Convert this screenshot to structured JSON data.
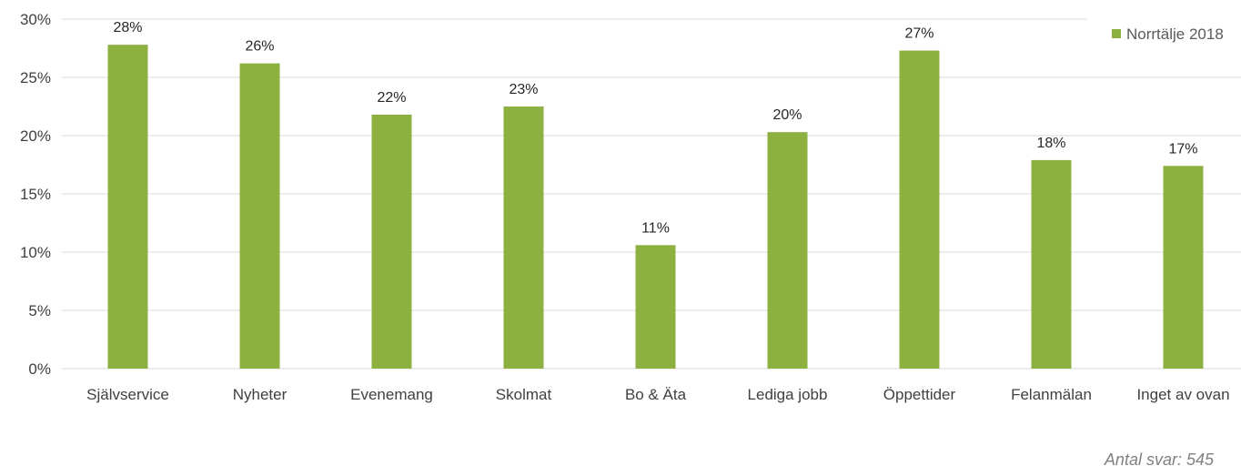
{
  "chart_data": {
    "type": "bar",
    "categories": [
      "Självservice",
      "Nyheter",
      "Evenemang",
      "Skolmat",
      "Bo & Äta",
      "Lediga jobb",
      "Öppettider",
      "Felanmälan",
      "Inget av ovan"
    ],
    "series": [
      {
        "name": "Norrtälje 2018",
        "values": [
          27.8,
          26.2,
          21.8,
          22.5,
          10.6,
          20.3,
          27.3,
          17.9,
          17.4
        ],
        "labels": [
          "28%",
          "26%",
          "22%",
          "23%",
          "11%",
          "20%",
          "27%",
          "18%",
          "17%"
        ],
        "color": "#8cb140"
      }
    ],
    "y_ticks": [
      "0%",
      "5%",
      "10%",
      "15%",
      "20%",
      "25%",
      "30%"
    ],
    "ylim": [
      0,
      30
    ],
    "grid": true,
    "legend_position": "top-right",
    "gridline_color": "#d9d9d9"
  },
  "note": "Antal svar: 545"
}
